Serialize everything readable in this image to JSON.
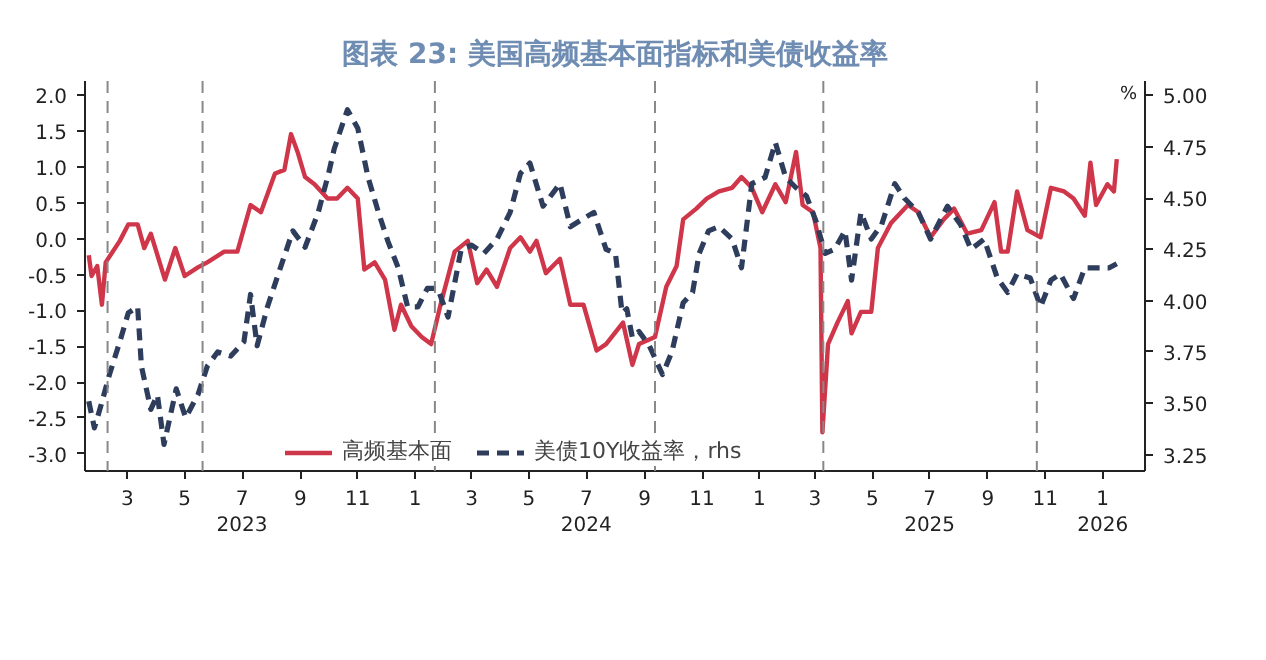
{
  "chart_data": {
    "type": "line",
    "title": "图表 23: 美国高频基本面指标和美债收益率",
    "y2label": "%",
    "xlim": [
      "2023-01-15",
      "2026-02-15"
    ],
    "xticks": [
      {
        "value": "2023-03",
        "label": "3"
      },
      {
        "value": "2023-05",
        "label": "5"
      },
      {
        "value": "2023-07",
        "label": "7\n2023"
      },
      {
        "value": "2023-09",
        "label": "9"
      },
      {
        "value": "2023-11",
        "label": "11"
      },
      {
        "value": "2024-01",
        "label": "1"
      },
      {
        "value": "2024-03",
        "label": "3"
      },
      {
        "value": "2024-05",
        "label": "5"
      },
      {
        "value": "2024-07",
        "label": "7\n2024"
      },
      {
        "value": "2024-09",
        "label": "9"
      },
      {
        "value": "2024-11",
        "label": "11"
      },
      {
        "value": "2025-01",
        "label": "1"
      },
      {
        "value": "2025-03",
        "label": "3"
      },
      {
        "value": "2025-05",
        "label": "5"
      },
      {
        "value": "2025-07",
        "label": "7\n2025"
      },
      {
        "value": "2025-09",
        "label": "9"
      },
      {
        "value": "2025-11",
        "label": "11"
      },
      {
        "value": "2026-01",
        "label": "1\n2026"
      }
    ],
    "ylim": [
      -3.24,
      2.2
    ],
    "yticks": [
      {
        "value": 2,
        "label": "2.0"
      },
      {
        "value": 1.5,
        "label": "1.5"
      },
      {
        "value": 1,
        "label": "1.0"
      },
      {
        "value": 0.5,
        "label": "0.5"
      },
      {
        "value": 0,
        "label": "0.0"
      },
      {
        "value": -0.5,
        "label": "-0.5"
      },
      {
        "value": -1,
        "label": "-1.0"
      },
      {
        "value": -1.5,
        "label": "-1.5"
      },
      {
        "value": -2,
        "label": "-2.0"
      },
      {
        "value": -2.5,
        "label": "-2.5"
      },
      {
        "value": -3,
        "label": "-3.0"
      }
    ],
    "y2lim": [
      3.17,
      5.07
    ],
    "y2ticks": [
      {
        "value": 5,
        "label": "5.00"
      },
      {
        "value": 4.75,
        "label": "4.75"
      },
      {
        "value": 4.5,
        "label": "4.50"
      },
      {
        "value": 4.25,
        "label": "4.25"
      },
      {
        "value": 4,
        "label": "4.00"
      },
      {
        "value": 3.75,
        "label": "3.75"
      },
      {
        "value": 3.5,
        "label": "3.50"
      },
      {
        "value": 3.25,
        "label": "3.25"
      }
    ],
    "grid": false,
    "legend": "bottom",
    "marker": "none",
    "ref_lines": [
      {
        "axis": "x",
        "value": "2023-02-08",
        "color": "#888888",
        "line_style": "dashed"
      },
      {
        "axis": "x",
        "value": "2023-05-20",
        "color": "#888888",
        "line_style": "dashed"
      },
      {
        "axis": "x",
        "value": "2024-01-22",
        "color": "#888888",
        "line_style": "dashed"
      },
      {
        "axis": "x",
        "value": "2024-09-12",
        "color": "#888888",
        "line_style": "dashed"
      },
      {
        "axis": "x",
        "value": "2025-03-10",
        "color": "#888888",
        "line_style": "dashed"
      },
      {
        "axis": "x",
        "value": "2025-10-23",
        "color": "#888888",
        "line_style": "dashed"
      }
    ],
    "series": [
      {
        "name": "高频基本面",
        "color": "#d0364a",
        "line_style": "solid",
        "x": [
          "2023-01-19",
          "2023-01-22",
          "2023-01-28",
          "2023-02-02",
          "2023-02-06",
          "2023-02-21",
          "2023-03-02",
          "2023-03-12",
          "2023-03-19",
          "2023-03-26",
          "2023-04-10",
          "2023-04-21",
          "2023-05-01",
          "2023-05-15",
          "2023-05-25",
          "2023-06-12",
          "2023-06-26",
          "2023-07-10",
          "2023-07-21",
          "2023-08-05",
          "2023-08-15",
          "2023-08-22",
          "2023-08-29",
          "2023-09-06",
          "2023-09-16",
          "2023-09-30",
          "2023-10-10",
          "2023-10-21",
          "2023-11-01",
          "2023-11-08",
          "2023-11-19",
          "2023-11-30",
          "2023-12-10",
          "2023-12-17",
          "2023-12-28",
          "2024-01-08",
          "2024-01-18",
          "2024-01-28",
          "2024-02-12",
          "2024-02-26",
          "2024-03-07",
          "2024-03-17",
          "2024-03-28",
          "2024-04-11",
          "2024-04-22",
          "2024-05-02",
          "2024-05-09",
          "2024-05-19",
          "2024-06-03",
          "2024-06-14",
          "2024-06-28",
          "2024-07-12",
          "2024-07-22",
          "2024-08-09",
          "2024-08-19",
          "2024-08-26",
          "2024-09-12",
          "2024-09-24",
          "2024-10-05",
          "2024-10-12",
          "2024-10-26",
          "2024-11-06",
          "2024-11-19",
          "2024-12-03",
          "2024-12-13",
          "2024-12-24",
          "2025-01-04",
          "2025-01-18",
          "2025-01-29",
          "2025-02-09",
          "2025-02-16",
          "2025-02-27",
          "2025-03-07",
          "2025-03-09",
          "2025-03-15",
          "2025-03-25",
          "2025-04-05",
          "2025-04-09",
          "2025-04-19",
          "2025-04-30",
          "2025-05-07",
          "2025-05-21",
          "2025-06-08",
          "2025-06-19",
          "2025-07-02",
          "2025-07-16",
          "2025-07-27",
          "2025-08-10",
          "2025-08-25",
          "2025-09-08",
          "2025-09-15",
          "2025-09-22",
          "2025-10-02",
          "2025-10-13",
          "2025-10-27",
          "2025-11-07",
          "2025-11-21",
          "2025-12-01",
          "2025-12-13",
          "2025-12-19",
          "2025-12-25",
          "2026-01-06",
          "2026-01-13",
          "2026-01-16"
        ],
        "values": [
          -0.23,
          -0.52,
          -0.38,
          -0.92,
          -0.33,
          -0.03,
          0.2,
          0.2,
          -0.13,
          0.07,
          -0.57,
          -0.13,
          -0.52,
          -0.4,
          -0.33,
          -0.18,
          -0.18,
          0.47,
          0.37,
          0.91,
          0.96,
          1.46,
          1.21,
          0.86,
          0.76,
          0.56,
          0.56,
          0.71,
          0.56,
          -0.43,
          -0.33,
          -0.57,
          -1.27,
          -0.92,
          -1.22,
          -1.37,
          -1.47,
          -0.92,
          -0.18,
          -0.03,
          -0.62,
          -0.43,
          -0.67,
          -0.13,
          0.02,
          -0.18,
          -0.03,
          -0.48,
          -0.28,
          -0.92,
          -0.92,
          -1.56,
          -1.47,
          -1.17,
          -1.76,
          -1.47,
          -1.37,
          -0.67,
          -0.38,
          0.27,
          0.42,
          0.56,
          0.66,
          0.71,
          0.86,
          0.71,
          0.37,
          0.76,
          0.51,
          1.21,
          0.47,
          0.37,
          -0.13,
          -2.7,
          -1.47,
          -1.17,
          -0.87,
          -1.32,
          -1.02,
          -1.02,
          -0.13,
          0.22,
          0.47,
          0.37,
          0.02,
          0.27,
          0.42,
          0.07,
          0.12,
          0.51,
          -0.18,
          -0.18,
          0.66,
          0.12,
          0.02,
          0.71,
          0.66,
          0.56,
          0.32,
          1.06,
          0.47,
          0.76,
          0.66,
          1.11
        ]
      },
      {
        "name": "美债10Y收益率，rhs",
        "color": "#2e3d5c",
        "line_style": "dashed",
        "axis": "y2",
        "x": [
          "2023-01-19",
          "2023-01-25",
          "2023-02-01",
          "2023-02-10",
          "2023-02-21",
          "2023-03-02",
          "2023-03-12",
          "2023-03-16",
          "2023-03-26",
          "2023-04-02",
          "2023-04-09",
          "2023-04-22",
          "2023-05-02",
          "2023-05-15",
          "2023-05-25",
          "2023-06-05",
          "2023-06-19",
          "2023-07-03",
          "2023-07-10",
          "2023-07-17",
          "2023-07-28",
          "2023-08-10",
          "2023-08-24",
          "2023-09-06",
          "2023-09-20",
          "2023-10-01",
          "2023-10-07",
          "2023-10-21",
          "2023-11-01",
          "2023-11-12",
          "2023-11-23",
          "2023-12-03",
          "2023-12-14",
          "2023-12-24",
          "2024-01-04",
          "2024-01-14",
          "2024-01-25",
          "2024-02-05",
          "2024-02-19",
          "2024-03-01",
          "2024-03-14",
          "2024-03-28",
          "2024-04-11",
          "2024-04-22",
          "2024-05-02",
          "2024-05-16",
          "2024-06-03",
          "2024-06-14",
          "2024-06-28",
          "2024-07-09",
          "2024-07-22",
          "2024-08-01",
          "2024-08-08",
          "2024-08-13",
          "2024-08-19",
          "2024-08-26",
          "2024-09-06",
          "2024-09-20",
          "2024-09-30",
          "2024-10-12",
          "2024-10-22",
          "2024-10-29",
          "2024-11-08",
          "2024-11-19",
          "2024-12-03",
          "2024-12-13",
          "2024-12-24",
          "2025-01-07",
          "2025-01-18",
          "2025-01-29",
          "2025-02-09",
          "2025-02-20",
          "2025-03-02",
          "2025-03-12",
          "2025-03-22",
          "2025-04-02",
          "2025-04-09",
          "2025-04-19",
          "2025-04-30",
          "2025-05-11",
          "2025-05-25",
          "2025-06-04",
          "2025-06-19",
          "2025-07-02",
          "2025-07-20",
          "2025-08-03",
          "2025-08-14",
          "2025-08-28",
          "2025-09-11",
          "2025-09-22",
          "2025-10-02",
          "2025-10-16",
          "2025-10-27",
          "2025-11-07",
          "2025-11-17",
          "2025-12-01",
          "2025-12-13",
          "2025-12-25",
          "2026-01-08",
          "2026-01-16"
        ],
        "values": [
          3.51,
          3.38,
          3.49,
          3.64,
          3.8,
          3.94,
          3.97,
          3.68,
          3.47,
          3.54,
          3.3,
          3.57,
          3.43,
          3.54,
          3.68,
          3.75,
          3.73,
          3.8,
          4.03,
          3.78,
          3.97,
          4.15,
          4.34,
          4.26,
          4.43,
          4.62,
          4.74,
          4.93,
          4.84,
          4.6,
          4.43,
          4.29,
          4.16,
          3.97,
          3.97,
          4.06,
          4.06,
          3.92,
          4.25,
          4.27,
          4.23,
          4.3,
          4.43,
          4.62,
          4.67,
          4.46,
          4.57,
          4.36,
          4.4,
          4.43,
          4.25,
          4.23,
          3.94,
          3.96,
          3.82,
          3.85,
          3.78,
          3.64,
          3.75,
          3.99,
          4.04,
          4.23,
          4.34,
          4.36,
          4.3,
          4.16,
          4.57,
          4.6,
          4.77,
          4.6,
          4.55,
          4.51,
          4.39,
          4.23,
          4.25,
          4.34,
          4.1,
          4.43,
          4.3,
          4.37,
          4.57,
          4.5,
          4.43,
          4.3,
          4.46,
          4.37,
          4.25,
          4.3,
          4.11,
          4.04,
          4.13,
          4.11,
          3.97,
          4.1,
          4.13,
          4.01,
          4.16,
          4.16,
          4.16,
          4.18
        ]
      }
    ]
  }
}
